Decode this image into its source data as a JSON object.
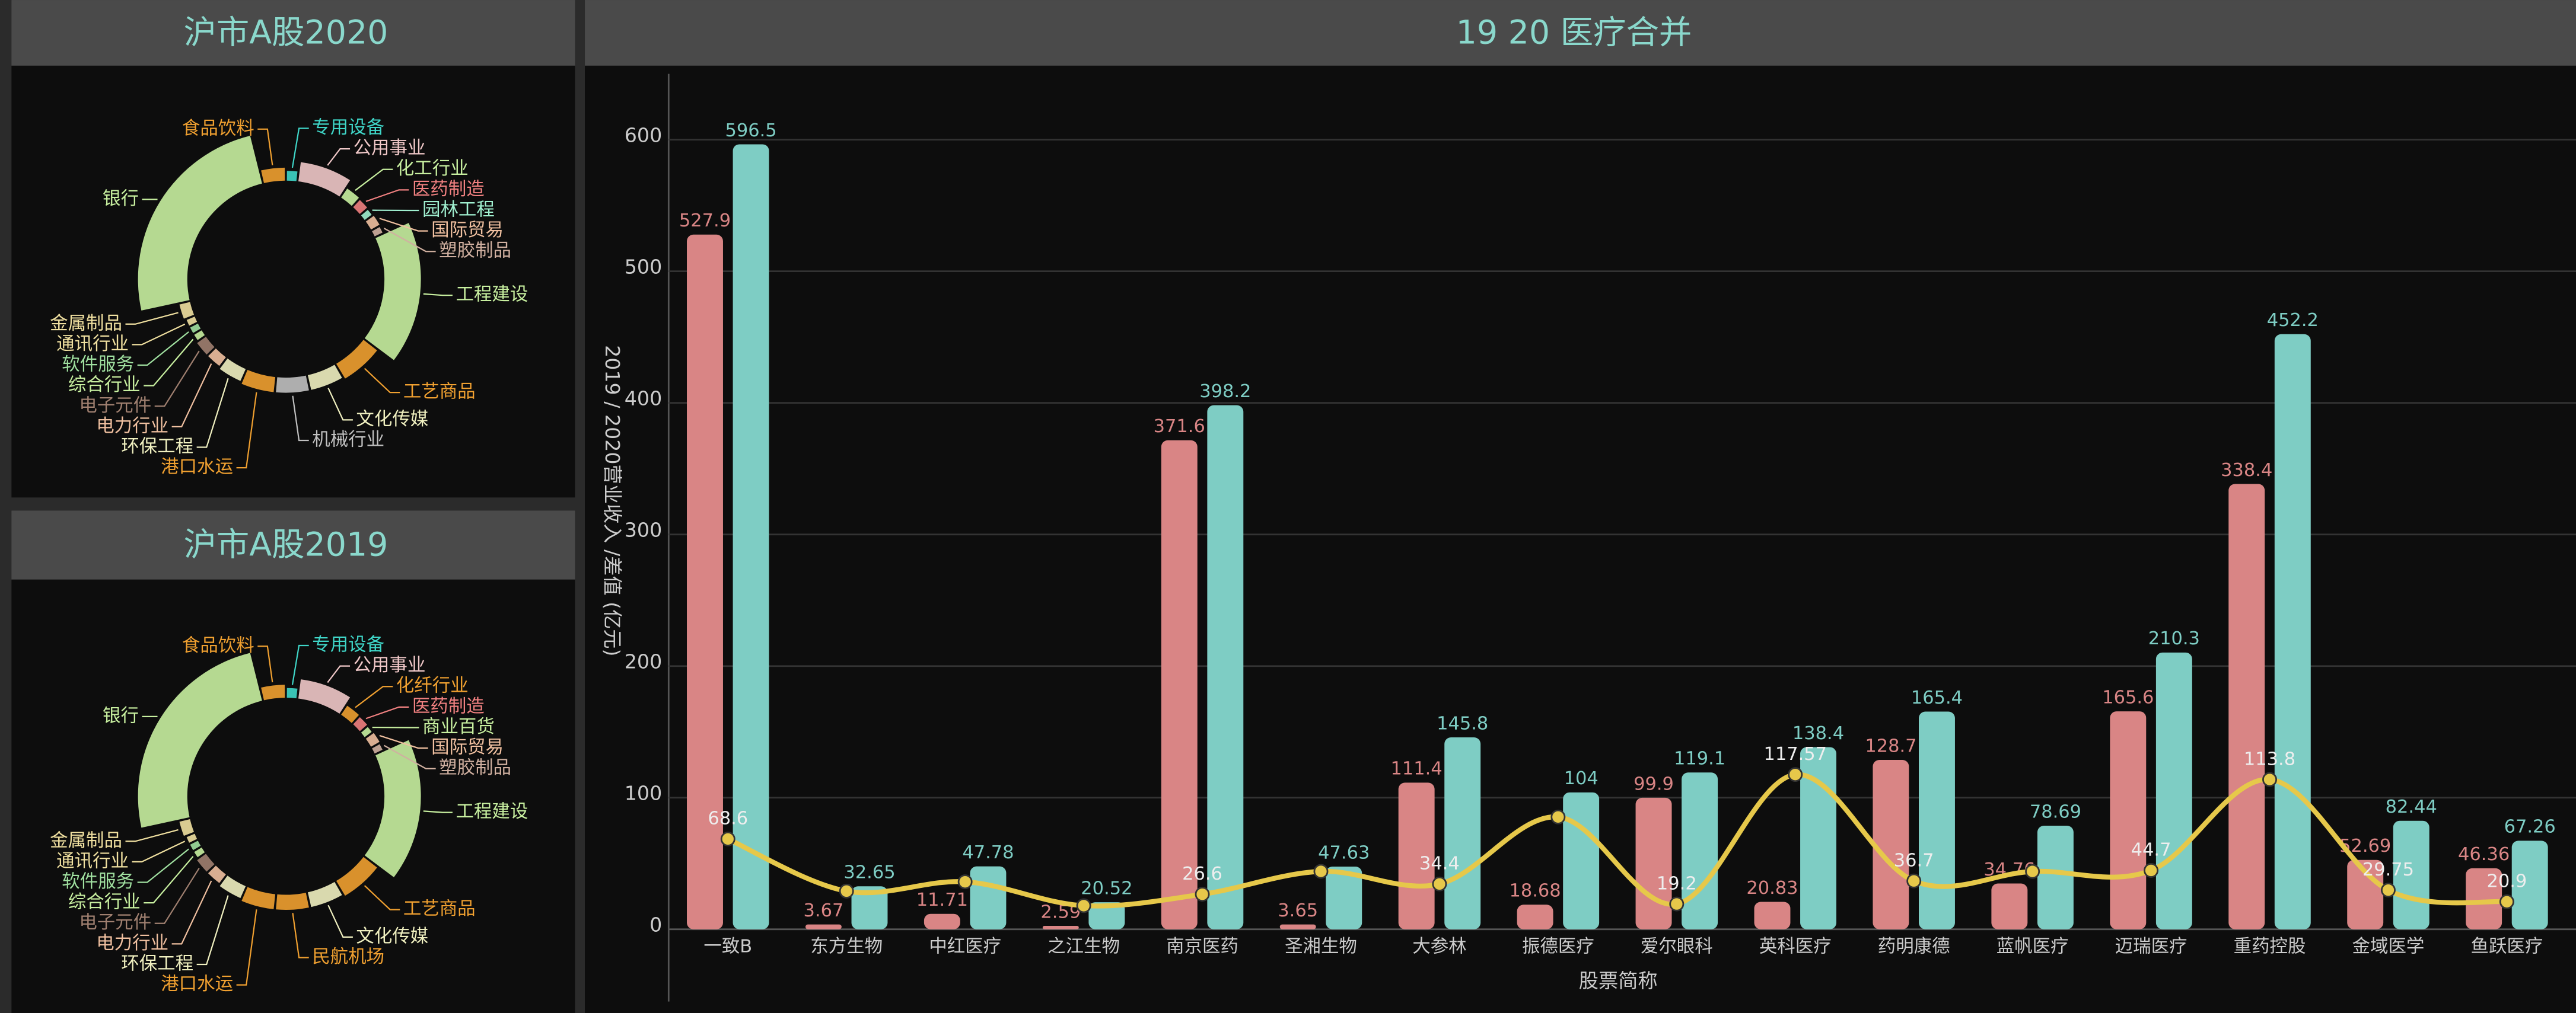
{
  "chart_data": {
    "type": "bar",
    "title": "19 20 医疗合并",
    "y_label": "2019 / 2020营业收入 /差值 (亿元)",
    "x_label": "股票简称",
    "categories": [
      "一致B",
      "东方生物",
      "中红医疗",
      "之江生物",
      "南京医药",
      "圣湘生物",
      "大参林",
      "振德医疗",
      "爱尔眼科",
      "英科医疗",
      "药明康德",
      "蓝帆医疗",
      "迈瑞医疗",
      "重药控股",
      "金域医学",
      "鱼跃医疗"
    ],
    "series": [
      {
        "type": "bar",
        "color": "#d98585",
        "values": [
          527.9,
          3.67,
          11.71,
          2.59,
          371.6,
          3.65,
          111.4,
          18.68,
          99.9,
          20.83,
          128.7,
          34.76,
          165.6,
          338.4,
          52.69,
          46.36
        ]
      },
      {
        "type": "bar",
        "color": "#7ecdc4",
        "values": [
          596.5,
          32.65,
          47.78,
          20.52,
          398.2,
          47.63,
          145.8,
          104,
          119.1,
          138.4,
          165.4,
          78.69,
          210.3,
          452.2,
          82.44,
          67.26
        ]
      },
      {
        "type": "line",
        "color": "#e6c84a",
        "values": [
          68.6,
          28.98,
          36.07,
          17.93,
          26.6,
          43.98,
          34.4,
          85.32,
          19.2,
          117.57,
          36.7,
          43.93,
          44.7,
          113.8,
          29.75,
          20.9
        ],
        "value_labels": [
          "68.6",
          null,
          null,
          null,
          "26.6",
          null,
          "34.4",
          null,
          "19.2",
          "117.57",
          "36.7",
          null,
          "44.7",
          "113.8",
          "29.75",
          "20.9"
        ]
      }
    ],
    "ylim": [
      0,
      650
    ],
    "yticks": [
      0,
      100,
      200,
      300,
      400,
      500,
      600
    ],
    "grid": true
  },
  "side_panels": [
    {
      "type": "pie",
      "title": "沪市A股2020",
      "labels": [
        "专用设备",
        "公用事业",
        "化工行业",
        "医药制造",
        "园林工程",
        "国际贸易",
        "塑胶制品",
        "工程建设",
        "工艺商品",
        "文化传媒",
        "机械行业",
        "港口水运",
        "环保工程",
        "电力行业",
        "电子元件",
        "综合行业",
        "软件服务",
        "通讯行业",
        "金属制品",
        "银行",
        "食品饮料"
      ],
      "values": [
        1.5,
        6,
        2,
        1.5,
        1,
        1.5,
        1,
        14,
        5,
        4,
        4,
        4,
        3,
        2,
        2,
        1,
        1,
        1,
        2,
        20,
        3
      ],
      "colors": [
        "#3fd6c8",
        "#f0c8c8",
        "#c8f0a0",
        "#f08080",
        "#a0f0d0",
        "#f0c0a0",
        "#d0b0a0",
        "#c8f0a0",
        "#f0a030",
        "#f0f0c0",
        "#c0c0c0",
        "#f0a030",
        "#f0f0c0",
        "#f0c0a0",
        "#a08070",
        "#c8f0a0",
        "#a0e0a0",
        "#f0e0a0",
        "#f0e0a0",
        "#c8f0a0",
        "#f0a030"
      ]
    },
    {
      "type": "pie",
      "title": "沪市A股2019",
      "labels": [
        "专用设备",
        "公用事业",
        "化纤行业",
        "医药制造",
        "商业百货",
        "国际贸易",
        "塑胶制品",
        "工程建设",
        "工艺商品",
        "文化传媒",
        "民航机场",
        "港口水运",
        "环保工程",
        "电力行业",
        "电子元件",
        "综合行业",
        "软件服务",
        "通讯行业",
        "金属制品",
        "银行",
        "食品饮料"
      ],
      "values": [
        1.5,
        6,
        2,
        1.5,
        1,
        1.5,
        1,
        14,
        5,
        4,
        4,
        4,
        3,
        2,
        2,
        1,
        1,
        1,
        2,
        20,
        3
      ],
      "colors": [
        "#3fd6c8",
        "#f0c8c8",
        "#f0a030",
        "#f08080",
        "#c8f0a0",
        "#f0c0a0",
        "#d0b0a0",
        "#c8f0a0",
        "#f0a030",
        "#f0f0c0",
        "#f0a030",
        "#f0a030",
        "#f0f0c0",
        "#f0c0a0",
        "#a08070",
        "#c8f0a0",
        "#a0e0a0",
        "#f0e0a0",
        "#f0e0a0",
        "#c8f0a0",
        "#f0a030"
      ]
    }
  ]
}
